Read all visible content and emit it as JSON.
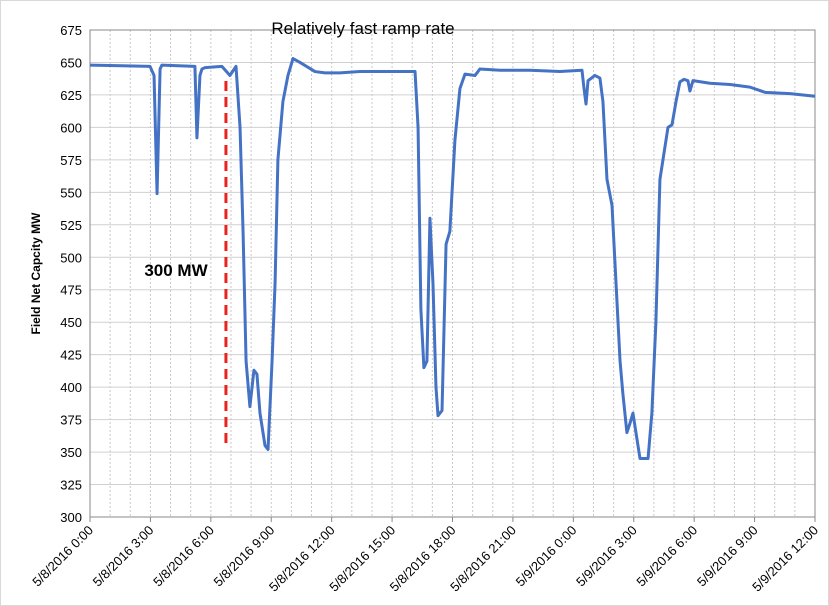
{
  "chart_data": {
    "type": "line",
    "annotations": [
      {
        "text": "Relatively fast ramp rate",
        "color": "#e8241c"
      },
      {
        "text": "300 MW",
        "color": "#e8501c"
      }
    ],
    "marker_line": {
      "x": 6.75,
      "y": [
        357,
        637
      ],
      "color": "#e8241c"
    },
    "y_label": "Field Net Capcity MW",
    "xlim": [
      0,
      36
    ],
    "xticks": [
      {
        "value": 0,
        "label": "5/8/2016 0:00"
      },
      {
        "value": 3,
        "label": "5/8/2016 3:00"
      },
      {
        "value": 6,
        "label": "5/8/2016 6:00"
      },
      {
        "value": 9,
        "label": "5/8/2016 9:00"
      },
      {
        "value": 12,
        "label": "5/8/2016 12:00"
      },
      {
        "value": 15,
        "label": "5/8/2016 15:00"
      },
      {
        "value": 18,
        "label": "5/8/2016 18:00"
      },
      {
        "value": 21,
        "label": "5/8/2016 21:00"
      },
      {
        "value": 24,
        "label": "5/9/2016 0:00"
      },
      {
        "value": 27,
        "label": "5/9/2016 3:00"
      },
      {
        "value": 30,
        "label": "5/9/2016 6:00"
      },
      {
        "value": 33,
        "label": "5/9/2016 9:00"
      },
      {
        "value": 36,
        "label": "5/9/2016 12:00"
      }
    ],
    "ylim": [
      300,
      675
    ],
    "yticks": [
      300,
      325,
      350,
      375,
      400,
      425,
      450,
      475,
      500,
      525,
      550,
      575,
      600,
      625,
      650,
      675
    ],
    "grid": true,
    "series": [
      {
        "color": "#4472c4",
        "x": [
          0,
          2.98,
          3.18,
          3.33,
          3.48,
          3.57,
          5.21,
          5.31,
          5.46,
          5.56,
          5.71,
          6.55,
          6.95,
          7.25,
          7.45,
          7.6,
          7.75,
          7.94,
          8.14,
          8.29,
          8.44,
          8.69,
          8.84,
          9.04,
          9.19,
          9.33,
          9.58,
          9.83,
          10.08,
          10.43,
          11.17,
          11.67,
          12.41,
          13.41,
          14.4,
          15.39,
          16.14,
          16.29,
          16.43,
          16.58,
          16.73,
          16.88,
          17.03,
          17.18,
          17.28,
          17.48,
          17.68,
          17.87,
          18.12,
          18.37,
          18.62,
          19.12,
          19.36,
          20.36,
          21.85,
          23.34,
          24.43,
          24.53,
          24.63,
          24.73,
          25.07,
          25.32,
          25.47,
          25.67,
          25.92,
          26.12,
          26.32,
          26.46,
          26.66,
          26.81,
          26.96,
          27.11,
          27.31,
          27.71,
          27.9,
          28.1,
          28.3,
          28.5,
          28.7,
          28.9,
          29.1,
          29.29,
          29.49,
          29.69,
          29.79,
          29.94,
          30.78,
          31.78,
          32.77,
          33.52,
          34.76,
          36
        ],
        "values": [
          648,
          647,
          640,
          549,
          645,
          648,
          647,
          592,
          640,
          645,
          646,
          647,
          640,
          647,
          600,
          520,
          420,
          385,
          413,
          410,
          380,
          355,
          352,
          420,
          480,
          575,
          620,
          640,
          653,
          650,
          643,
          642,
          642,
          643,
          643,
          643,
          643,
          600,
          460,
          415,
          420,
          530,
          480,
          400,
          378,
          382,
          510,
          520,
          590,
          630,
          641,
          640,
          645,
          644,
          644,
          643,
          644,
          630,
          618,
          636,
          640,
          638,
          620,
          560,
          540,
          480,
          420,
          395,
          365,
          372,
          380,
          365,
          345,
          345,
          380,
          450,
          560,
          580,
          600,
          602,
          620,
          635,
          637,
          636,
          628,
          636,
          634,
          633,
          631,
          627,
          626,
          624
        ]
      }
    ]
  }
}
